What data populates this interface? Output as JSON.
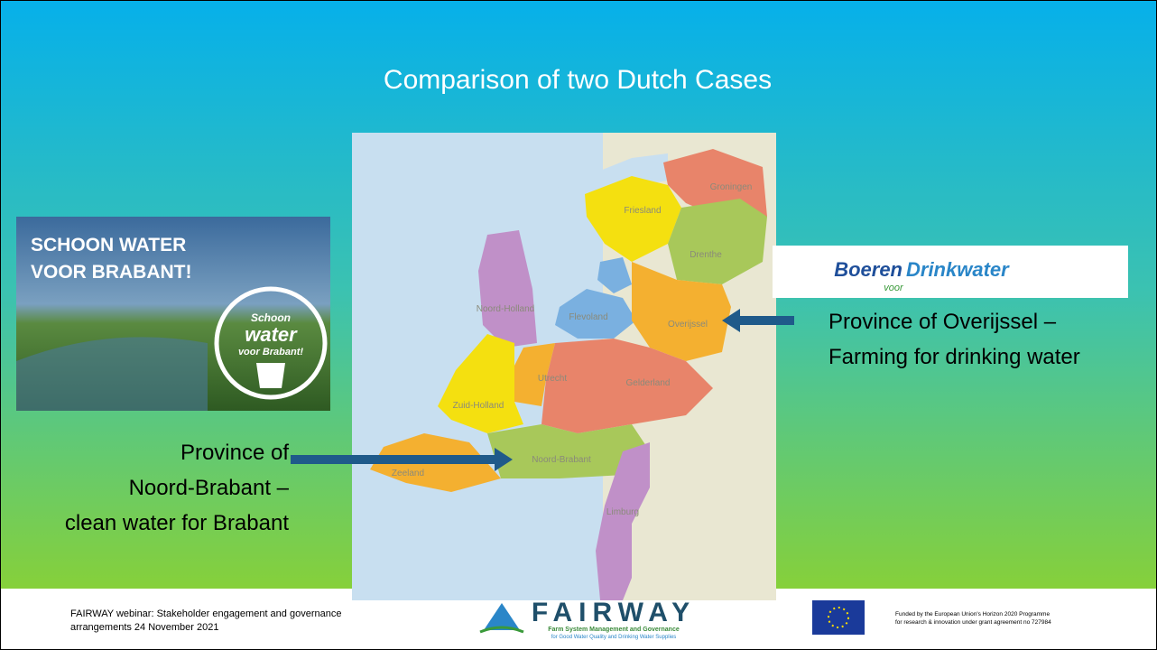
{
  "slide": {
    "title": "Comparison of two Dutch Cases",
    "left_image": {
      "headline": [
        "SCHOON WATER",
        "VOOR BRABANT!"
      ],
      "badge": [
        "Schoon",
        "water",
        "voor Brabant!"
      ]
    },
    "left_caption": [
      "Province of",
      "Noord-Brabant –",
      "clean water for Brabant"
    ],
    "right_logo": {
      "part1": "Boeren",
      "part2": "voor",
      "part3": "Drinkwater"
    },
    "right_caption": [
      "Province of Overijssel –",
      "Farming for drinking water"
    ],
    "map_labels": [
      "Groningen",
      "Friesland",
      "Drenthe",
      "Noord-Holland",
      "Flevoland",
      "Overijssel",
      "Utrecht",
      "Gelderland",
      "Zuid-Holland",
      "Noord-Brabant",
      "Zeeland",
      "Limburg"
    ],
    "footer": {
      "left": [
        "FAIRWAY webinar:  Stakeholder engagement and governance",
        "arrangements 24 November 2021"
      ],
      "logo": "FAIRWAY",
      "logo_sub": [
        "Farm System Management and Governance",
        "for Good Water Quality and Drinking Water Supplies"
      ],
      "right": [
        "Funded by the European Union's Horizon 2020 Programme",
        "for research & innovation under grant agreement no 727984"
      ]
    }
  }
}
